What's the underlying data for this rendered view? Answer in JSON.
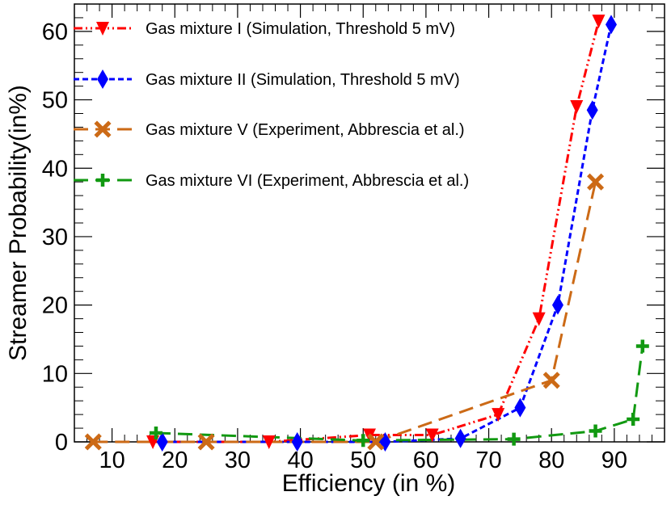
{
  "chart_data": {
    "type": "line",
    "title": "",
    "xlabel": "Efficiency (in %)",
    "ylabel": "Streamer Probability(in%)",
    "xlim": [
      4,
      98
    ],
    "ylim": [
      0,
      64
    ],
    "xticks": [
      10,
      20,
      30,
      40,
      50,
      60,
      70,
      80,
      90
    ],
    "yticks": [
      0,
      10,
      20,
      30,
      40,
      50,
      60
    ],
    "grid": false,
    "legend_position": "top-left",
    "series": [
      {
        "name": "Gas mixture I (Simulation, Threshold 5 mV)",
        "color": "#ff0000",
        "marker": "triangle-down",
        "line_style": "dash-dot",
        "x": [
          16.5,
          35,
          51,
          61,
          71.5,
          78,
          84,
          87.5
        ],
        "y": [
          0,
          0,
          1,
          1,
          4,
          18,
          49,
          61.5
        ]
      },
      {
        "name": "Gas mixture II (Simulation, Threshold 5 mV)",
        "color": "#0000ff",
        "marker": "diamond",
        "line_style": "dashed",
        "x": [
          18,
          39.5,
          53.5,
          65.5,
          75,
          81,
          86.5,
          89.5
        ],
        "y": [
          0,
          0,
          0,
          0.5,
          5,
          20,
          48.5,
          61
        ]
      },
      {
        "name": "Gas mixture V (Experiment, Abbrescia et al.)",
        "color": "#cc6a16",
        "marker": "x",
        "line_style": "long-dash",
        "x": [
          7,
          25,
          52,
          80,
          87
        ],
        "y": [
          0,
          0,
          0,
          9,
          38
        ]
      },
      {
        "name": "Gas mixture VI (Experiment, Abbrescia et al.)",
        "color": "#119911",
        "marker": "plus",
        "line_style": "long-dash",
        "x": [
          17,
          50,
          74,
          87,
          93,
          94.5
        ],
        "y": [
          1.3,
          0.2,
          0.4,
          1.6,
          3.3,
          14
        ]
      }
    ]
  }
}
